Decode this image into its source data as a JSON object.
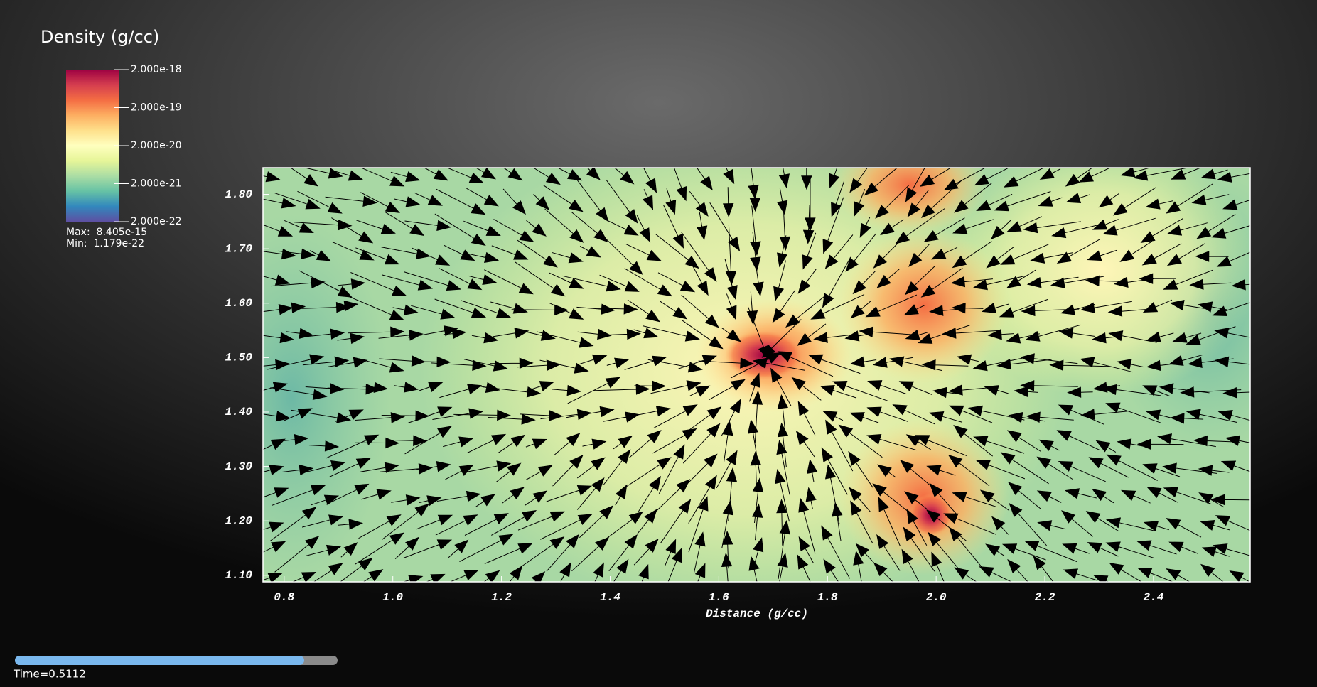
{
  "legend": {
    "title": "Density (g/cc)",
    "scale": "log",
    "clim": [
      2e-22,
      2e-18
    ],
    "colors": [
      "#5e4fa2",
      "#3288bd",
      "#66c2a5",
      "#abdda4",
      "#e6f598",
      "#ffffbf",
      "#fee08b",
      "#fdae61",
      "#f46d43",
      "#d53e4f",
      "#9e0142"
    ],
    "ticks": [
      {
        "value": 2e-18,
        "label": "2.000e-18"
      },
      {
        "value": 2e-19,
        "label": "2.000e-19"
      },
      {
        "value": 2e-20,
        "label": "2.000e-20"
      },
      {
        "value": 2e-21,
        "label": "2.000e-21"
      },
      {
        "value": 2e-22,
        "label": "2.000e-22"
      }
    ],
    "max": "Max:  8.405e-15",
    "min": "Min:  1.179e-22"
  },
  "plot": {
    "x_label": "Distance (g/cc)",
    "xlim": [
      0.761,
      2.578
    ],
    "ylim": [
      1.088,
      1.849
    ],
    "xticks": [
      {
        "value": 0.8,
        "label": "0.8"
      },
      {
        "value": 1.0,
        "label": "1.0"
      },
      {
        "value": 1.2,
        "label": "1.2"
      },
      {
        "value": 1.4,
        "label": "1.4"
      },
      {
        "value": 1.6,
        "label": "1.6"
      },
      {
        "value": 1.8,
        "label": "1.8"
      },
      {
        "value": 2.0,
        "label": "2.0"
      },
      {
        "value": 2.2,
        "label": "2.2"
      },
      {
        "value": 2.4,
        "label": "2.4"
      }
    ],
    "yticks": [
      {
        "value": 1.1,
        "label": "1.10"
      },
      {
        "value": 1.2,
        "label": "1.20"
      },
      {
        "value": 1.3,
        "label": "1.30"
      },
      {
        "value": 1.4,
        "label": "1.40"
      },
      {
        "value": 1.5,
        "label": "1.50"
      },
      {
        "value": 1.6,
        "label": "1.60"
      },
      {
        "value": 1.7,
        "label": "1.70"
      },
      {
        "value": 1.8,
        "label": "1.80"
      }
    ]
  },
  "time": "Time=0.5112"
}
